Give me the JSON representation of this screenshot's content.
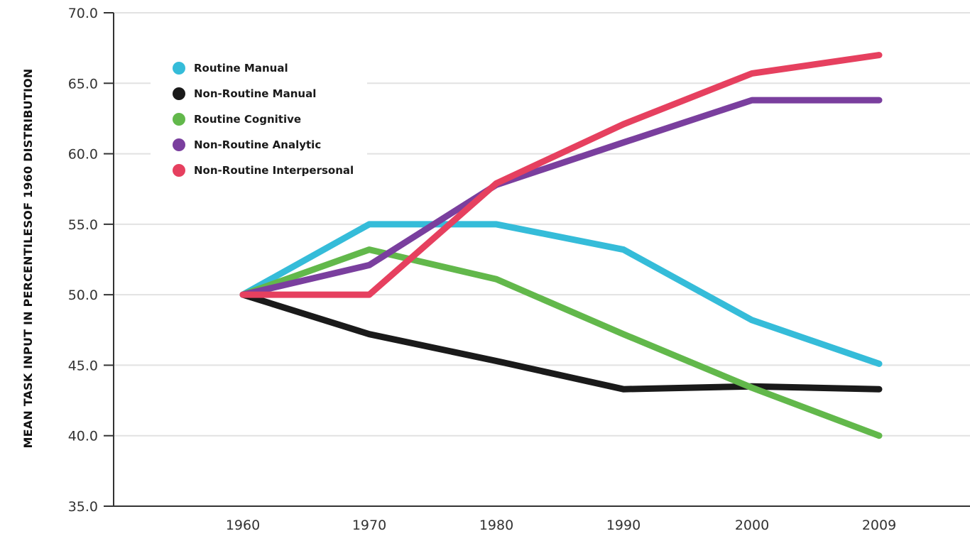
{
  "chart_data": {
    "type": "line",
    "title": "",
    "xlabel": "",
    "ylabel": "MEAN TASK INPUT IN PERCENTILESOF 1960 DISTRIBUTION",
    "x": [
      "1960",
      "1970",
      "1980",
      "1990",
      "2000",
      "2009"
    ],
    "ylim": [
      35.0,
      70.0
    ],
    "yticks": [
      "70.0",
      "65.0",
      "60.0",
      "55.0",
      "50.0",
      "45.0",
      "40.0",
      "35.0"
    ],
    "grid": "horizontal",
    "legend_position": "top-left",
    "series": [
      {
        "name": "Routine Manual",
        "color": "#35bcd9",
        "values": [
          50.0,
          55.0,
          55.0,
          53.2,
          48.2,
          45.1
        ]
      },
      {
        "name": "Non-Routine Manual",
        "color": "#1a1a1a",
        "values": [
          50.0,
          47.2,
          45.3,
          43.3,
          43.5,
          43.3
        ]
      },
      {
        "name": "Routine Cognitive",
        "color": "#62b84b",
        "values": [
          50.0,
          53.2,
          51.1,
          47.2,
          43.4,
          40.0
        ]
      },
      {
        "name": "Non-Routine Analytic",
        "color": "#7a3f9e",
        "values": [
          50.0,
          52.1,
          57.8,
          60.8,
          63.8,
          63.8
        ]
      },
      {
        "name": "Non-Routine Interpersonal",
        "color": "#e6405f",
        "values": [
          50.0,
          50.0,
          57.9,
          62.1,
          65.7,
          67.0
        ]
      }
    ]
  }
}
